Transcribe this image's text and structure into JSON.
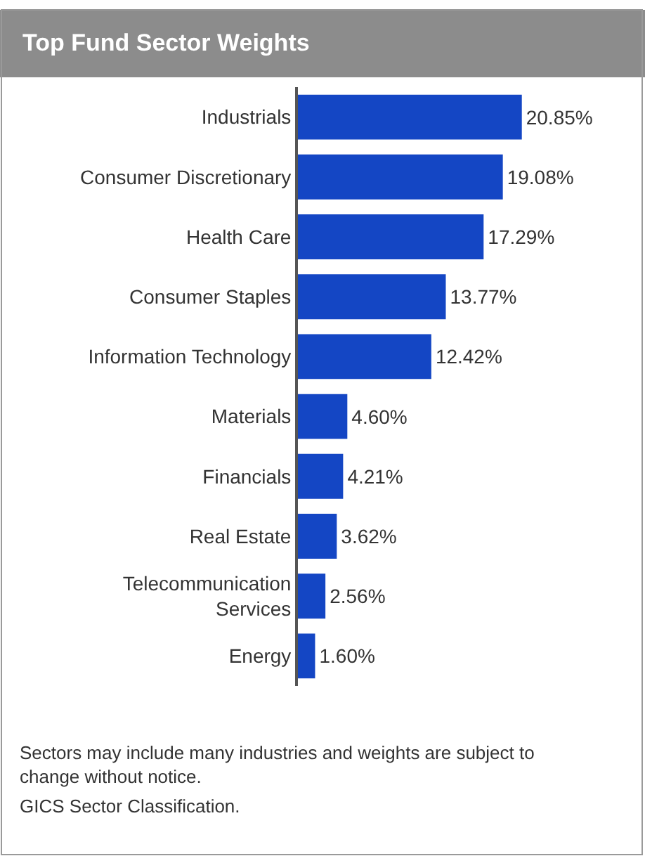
{
  "chart_data": {
    "type": "bar",
    "orientation": "horizontal",
    "title": "Top Fund Sector Weights",
    "categories": [
      "Industrials",
      "Consumer Discretionary",
      "Health Care",
      "Consumer Staples",
      "Information Technology",
      "Materials",
      "Financials",
      "Real Estate",
      "Telecommunication Services",
      "Energy"
    ],
    "values": [
      20.85,
      19.08,
      17.29,
      13.77,
      12.42,
      4.6,
      4.21,
      3.62,
      2.56,
      1.6
    ],
    "value_labels": [
      "20.85%",
      "19.08%",
      "17.29%",
      "13.77%",
      "12.42%",
      "4.60%",
      "4.21%",
      "3.62%",
      "2.56%",
      "1.60%"
    ],
    "color": "#1446c4",
    "tick_labels": "y",
    "annotations": [
      "Sectors may include many industries and weights are subject to change without notice.",
      "GICS Sector Classification."
    ]
  }
}
